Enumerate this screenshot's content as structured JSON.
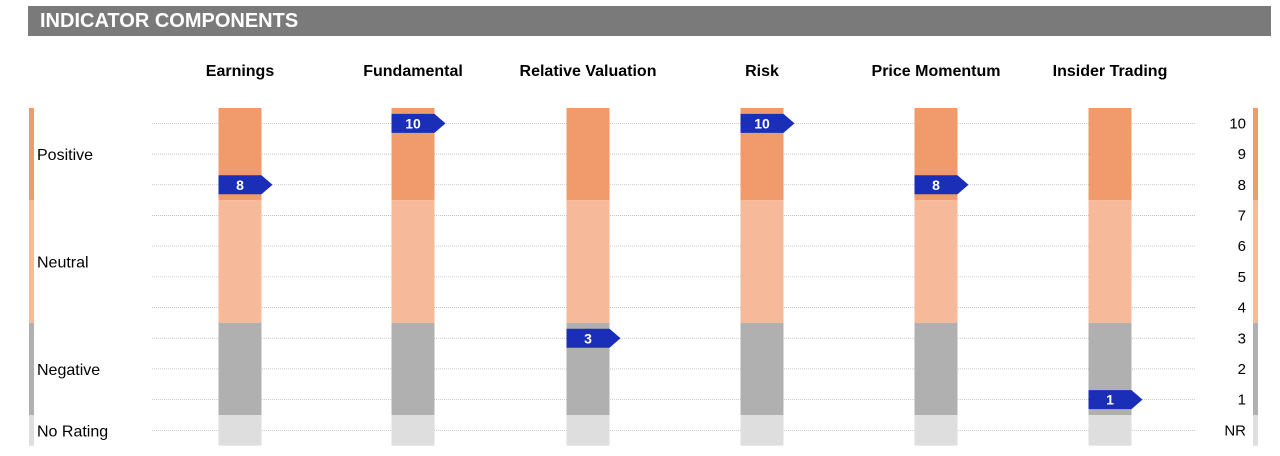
{
  "header": {
    "title": "INDICATOR COMPONENTS"
  },
  "colors": {
    "header_bg": "#7a7a7a",
    "positive": "#f19b6d",
    "neutral": "#f6b99a",
    "negative": "#b0b0b0",
    "no_rating": "#dedede",
    "marker": "#1a2eb8",
    "grid": "#bbbbbb"
  },
  "chart_data": {
    "type": "bar",
    "categories": [
      "Earnings",
      "Fundamental",
      "Relative Valuation",
      "Risk",
      "Price Momentum",
      "Insider Trading"
    ],
    "values": [
      8,
      10,
      3,
      10,
      8,
      1
    ],
    "value_labels": [
      "8",
      "10",
      "3",
      "10",
      "8",
      "1"
    ],
    "y_ticks": [
      "NR",
      "1",
      "2",
      "3",
      "4",
      "5",
      "6",
      "7",
      "8",
      "9",
      "10"
    ],
    "zones": [
      {
        "label": "Positive",
        "from": 8,
        "to": 10,
        "color_key": "positive"
      },
      {
        "label": "Neutral",
        "from": 4,
        "to": 7,
        "color_key": "neutral"
      },
      {
        "label": "Negative",
        "from": 1,
        "to": 3,
        "color_key": "negative"
      },
      {
        "label": "No Rating",
        "from": 0,
        "to": 0,
        "color_key": "no_rating"
      }
    ],
    "ylim": [
      0,
      10
    ]
  }
}
